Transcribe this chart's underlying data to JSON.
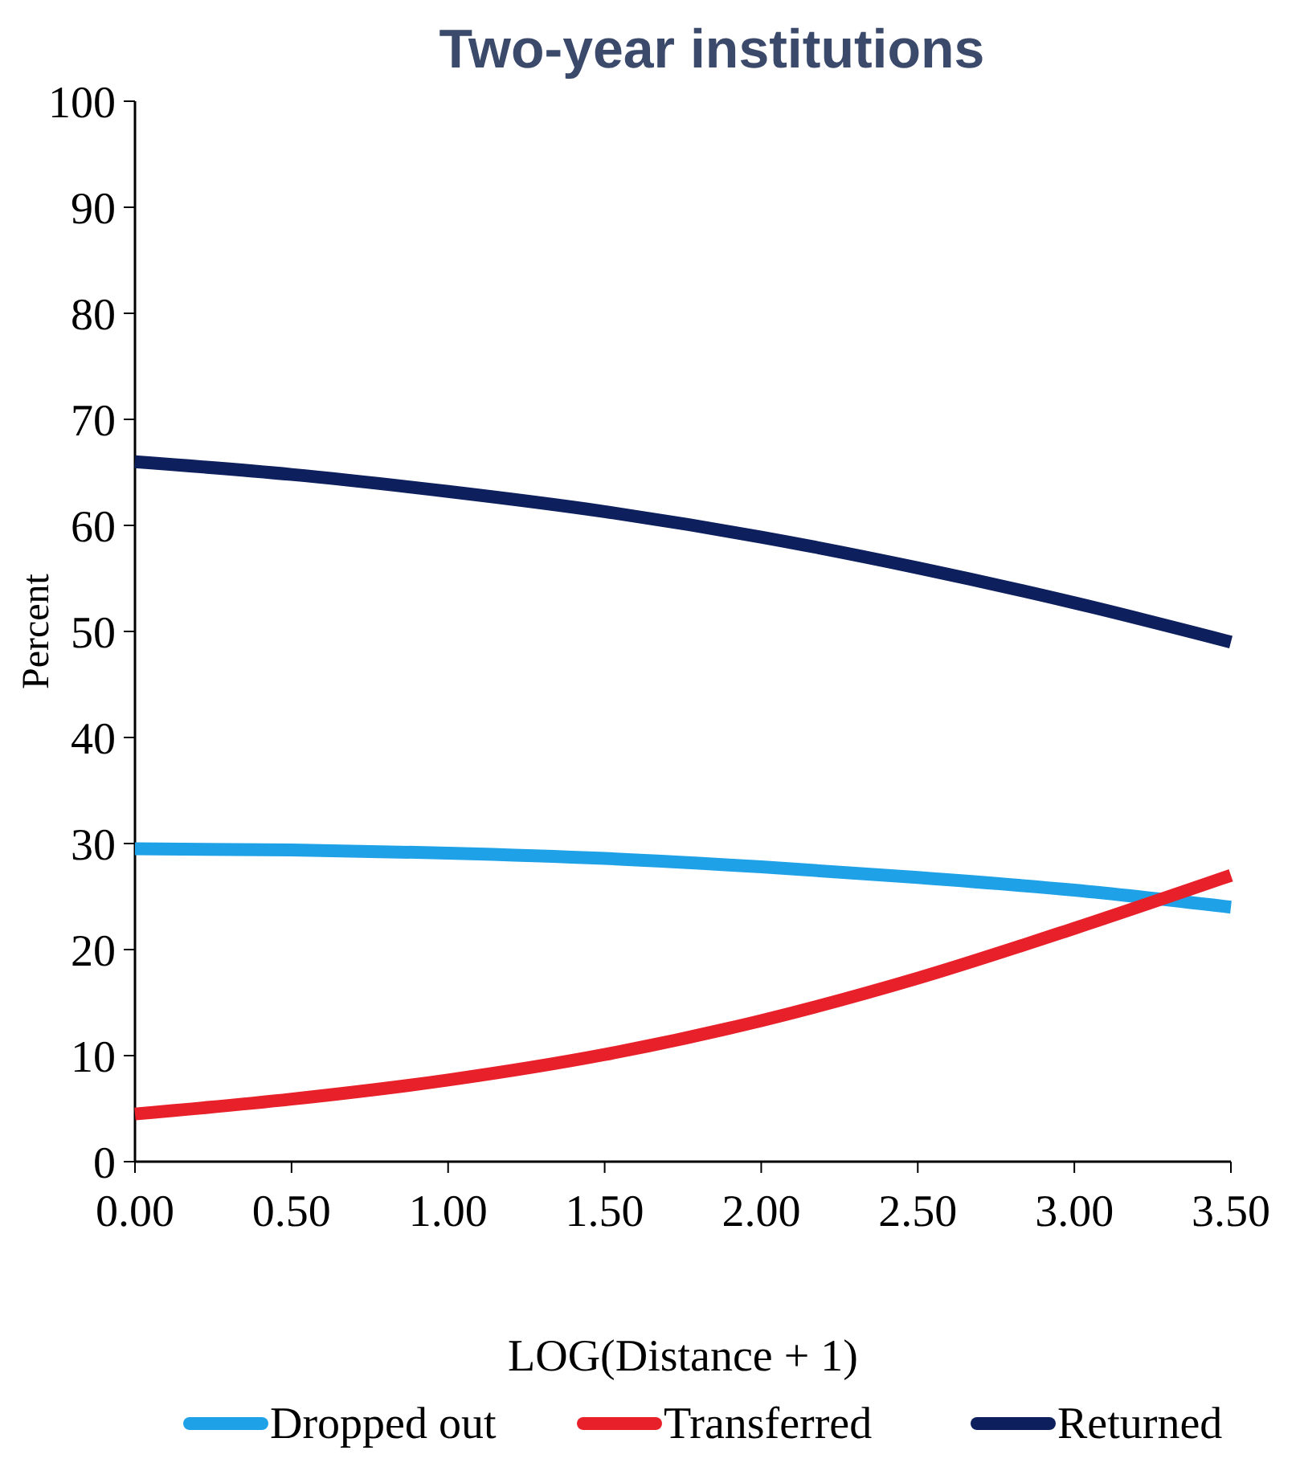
{
  "chart_data": {
    "type": "line",
    "title": "Two-year institutions",
    "xlabel": "LOG(Distance + 1)",
    "ylabel": "Percent",
    "x": [
      0,
      0.5,
      1,
      1.5,
      2,
      2.5,
      3,
      3.5
    ],
    "series": [
      {
        "name": "Dropped out",
        "color": "#1ea1e6",
        "values": [
          29.5,
          29.4,
          29.1,
          28.6,
          27.8,
          26.8,
          25.6,
          24
        ]
      },
      {
        "name": "Transferred",
        "color": "#e8202a",
        "values": [
          4.5,
          5.9,
          7.7,
          10.1,
          13.3,
          17.3,
          22.0,
          27
        ]
      },
      {
        "name": "Returned",
        "color": "#0d1f5c",
        "values": [
          66,
          64.8,
          63.2,
          61.3,
          58.9,
          56,
          52.7,
          49
        ]
      }
    ],
    "xlim": [
      0,
      3.5
    ],
    "xticks": [
      {
        "value": 0,
        "label": "0.00"
      },
      {
        "value": 0.5,
        "label": "0.50"
      },
      {
        "value": 1,
        "label": "1.00"
      },
      {
        "value": 1.5,
        "label": "1.50"
      },
      {
        "value": 2,
        "label": "2.00"
      },
      {
        "value": 2.5,
        "label": "2.50"
      },
      {
        "value": 3,
        "label": "3.00"
      },
      {
        "value": 3.5,
        "label": "3.50"
      }
    ],
    "ylim": [
      0,
      100
    ],
    "yticks": [
      0,
      10,
      20,
      30,
      40,
      50,
      60,
      70,
      80,
      90,
      100
    ],
    "legend": "bottom",
    "marker": "none",
    "line_style": "solid",
    "grid": false
  }
}
